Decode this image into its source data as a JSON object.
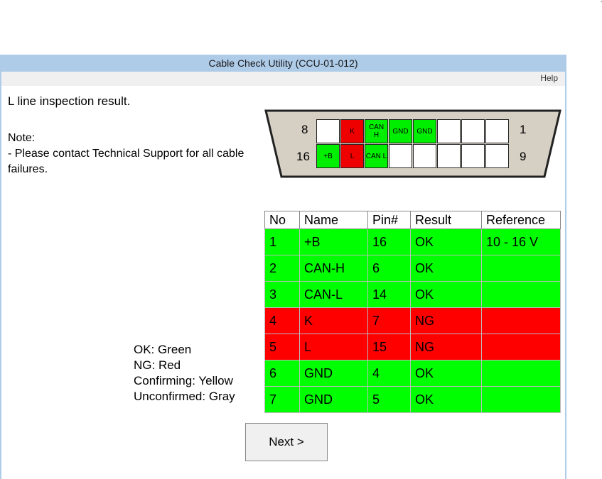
{
  "window": {
    "title": "Cable Check Utility (CCU-01-012)"
  },
  "menu": {
    "help": "Help"
  },
  "heading": "L line inspection result.",
  "note": {
    "line1": "Note:",
    "line2": "- Please contact Technical Support for all cable failures."
  },
  "legend": [
    "OK: Green",
    "NG: Red",
    "Confirming: Yellow",
    "Unconfirmed: Gray"
  ],
  "connector": {
    "labels": {
      "top_left": "8",
      "top_right": "1",
      "bottom_left": "16",
      "bottom_right": "9"
    },
    "top_row": [
      {
        "label": "",
        "state": "none"
      },
      {
        "label": "K",
        "state": "ng"
      },
      {
        "label": "CAN H",
        "state": "ok"
      },
      {
        "label": "GND",
        "state": "ok"
      },
      {
        "label": "GND",
        "state": "ok"
      },
      {
        "label": "",
        "state": "none"
      },
      {
        "label": "",
        "state": "none"
      },
      {
        "label": "",
        "state": "none"
      }
    ],
    "bottom_row": [
      {
        "label": "+B",
        "state": "ok"
      },
      {
        "label": "L",
        "state": "ng"
      },
      {
        "label": "CAN L",
        "state": "ok"
      },
      {
        "label": "",
        "state": "none"
      },
      {
        "label": "",
        "state": "none"
      },
      {
        "label": "",
        "state": "none"
      },
      {
        "label": "",
        "state": "none"
      },
      {
        "label": "",
        "state": "none"
      }
    ]
  },
  "table": {
    "headers": [
      "No",
      "Name",
      "Pin#",
      "Result",
      "Reference"
    ],
    "rows": [
      {
        "no": "1",
        "name": "+B",
        "pin": "16",
        "result": "OK",
        "ref": "10 - 16 V",
        "state": "ok"
      },
      {
        "no": "2",
        "name": "CAN-H",
        "pin": "6",
        "result": "OK",
        "ref": "",
        "state": "ok"
      },
      {
        "no": "3",
        "name": "CAN-L",
        "pin": "14",
        "result": "OK",
        "ref": "",
        "state": "ok"
      },
      {
        "no": "4",
        "name": "K",
        "pin": "7",
        "result": "NG",
        "ref": "",
        "state": "ng"
      },
      {
        "no": "5",
        "name": "L",
        "pin": "15",
        "result": "NG",
        "ref": "",
        "state": "ng"
      },
      {
        "no": "6",
        "name": "GND",
        "pin": "4",
        "result": "OK",
        "ref": "",
        "state": "ok"
      },
      {
        "no": "7",
        "name": "GND",
        "pin": "5",
        "result": "OK",
        "ref": "",
        "state": "ok"
      }
    ]
  },
  "buttons": {
    "next": "Next >"
  },
  "colors": {
    "ok": "#00ff00",
    "ng": "#ff0000",
    "titlebar": "#aecbe8"
  }
}
